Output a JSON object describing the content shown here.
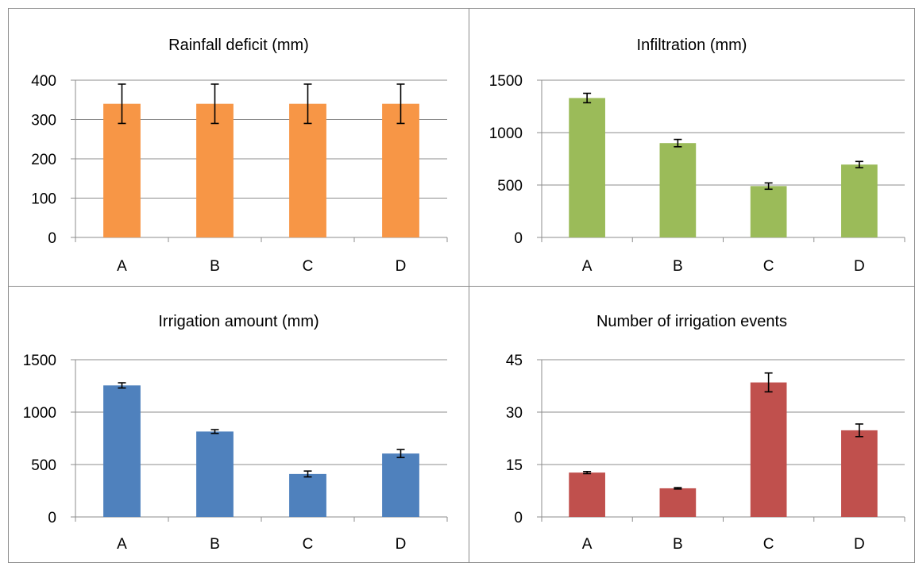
{
  "colors": {
    "orange": "#F79646",
    "green": "#9BBB59",
    "blue": "#4F81BD",
    "red": "#C0504D",
    "grid": "#8c8c8c",
    "error": "#000000"
  },
  "chart_data": [
    {
      "type": "bar",
      "title": "Rainfall deficit (mm)",
      "categories": [
        "A",
        "B",
        "C",
        "D"
      ],
      "values": [
        340,
        340,
        340,
        340
      ],
      "errors": [
        50,
        50,
        50,
        50
      ],
      "ylim": [
        0,
        400
      ],
      "yticks": [
        0,
        100,
        200,
        300,
        400
      ],
      "color": "#F79646",
      "grid": true,
      "legend": "none"
    },
    {
      "type": "bar",
      "title": "Infiltration (mm)",
      "categories": [
        "A",
        "B",
        "C",
        "D"
      ],
      "values": [
        1330,
        900,
        490,
        695
      ],
      "errors": [
        45,
        35,
        30,
        30
      ],
      "ylim": [
        0,
        1500
      ],
      "yticks": [
        0,
        500,
        1000,
        1500
      ],
      "color": "#9BBB59",
      "grid": true,
      "legend": "none"
    },
    {
      "type": "bar",
      "title": "Irrigation amount (mm)",
      "categories": [
        "A",
        "B",
        "C",
        "D"
      ],
      "values": [
        1255,
        815,
        410,
        605
      ],
      "errors": [
        25,
        18,
        28,
        38
      ],
      "ylim": [
        0,
        1500
      ],
      "yticks": [
        0,
        500,
        1000,
        1500
      ],
      "color": "#4F81BD",
      "grid": true,
      "legend": "none"
    },
    {
      "type": "bar",
      "title": "Number of irrigation events",
      "categories": [
        "A",
        "B",
        "C",
        "D"
      ],
      "values": [
        12.7,
        8.2,
        38.5,
        24.8
      ],
      "errors": [
        0.3,
        0.2,
        2.7,
        1.8
      ],
      "ylim": [
        0,
        45
      ],
      "yticks": [
        0,
        15,
        30,
        45
      ],
      "color": "#C0504D",
      "grid": true,
      "legend": "none"
    }
  ]
}
